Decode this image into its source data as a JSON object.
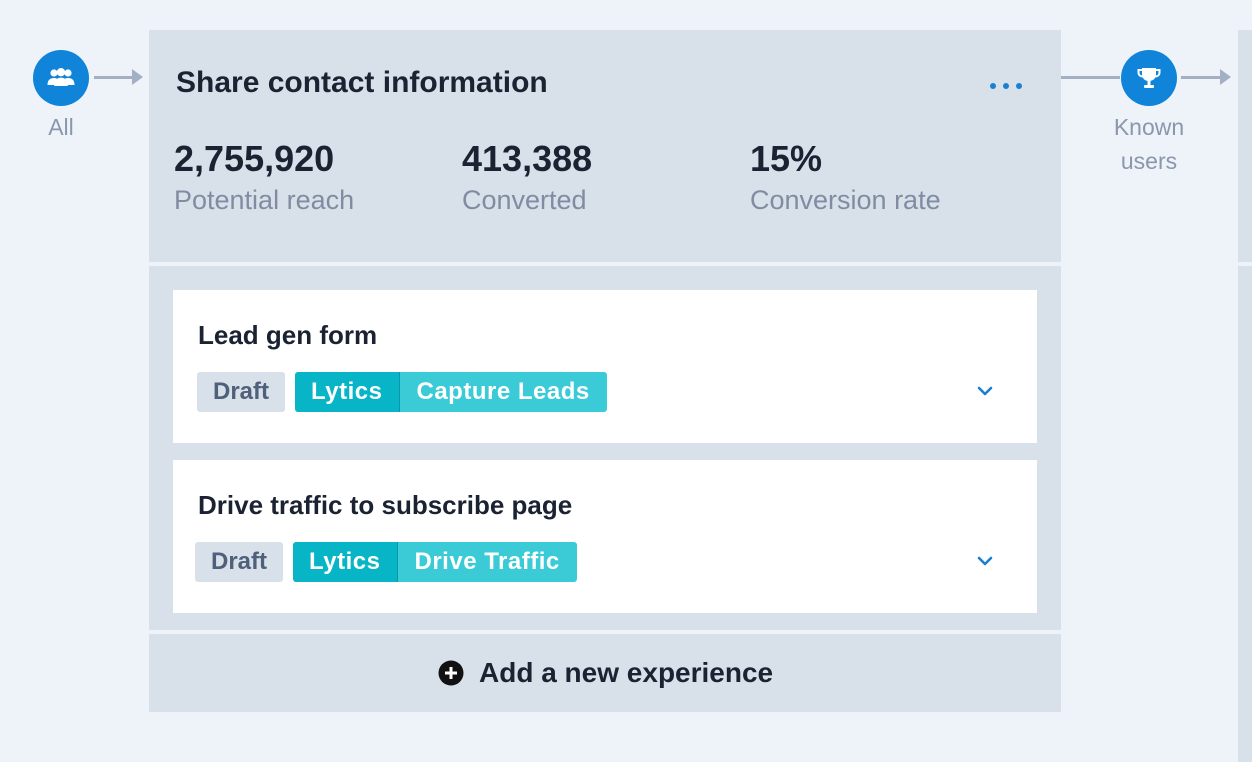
{
  "flow": {
    "start_node": {
      "label": "All",
      "icon": "users-group-icon"
    },
    "end_node": {
      "label_line1": "Known",
      "label_line2": "users",
      "icon": "trophy-icon"
    }
  },
  "card": {
    "title": "Share contact information",
    "more_icon": "more-horizontal-icon",
    "stats": [
      {
        "value": "2,755,920",
        "label": "Potential reach"
      },
      {
        "value": "413,388",
        "label": "Converted"
      },
      {
        "value": "15%",
        "label": "Conversion rate"
      }
    ],
    "experiences": [
      {
        "title": "Lead gen form",
        "status": "Draft",
        "provider": "Lytics",
        "goal": "Capture Leads"
      },
      {
        "title": "Drive traffic to subscribe page",
        "status": "Draft",
        "provider": "Lytics",
        "goal": "Drive Traffic"
      }
    ],
    "add_label": "Add a new experience",
    "add_icon": "plus-circle-icon"
  },
  "colors": {
    "node_blue": "#0f84d8",
    "panel": "#d8e0ea",
    "lytics_tag": "#08b5c6",
    "goal_tag": "#3acbd6",
    "draft_tag": "#d8e0ea",
    "link_blue": "#1a7fd0"
  }
}
